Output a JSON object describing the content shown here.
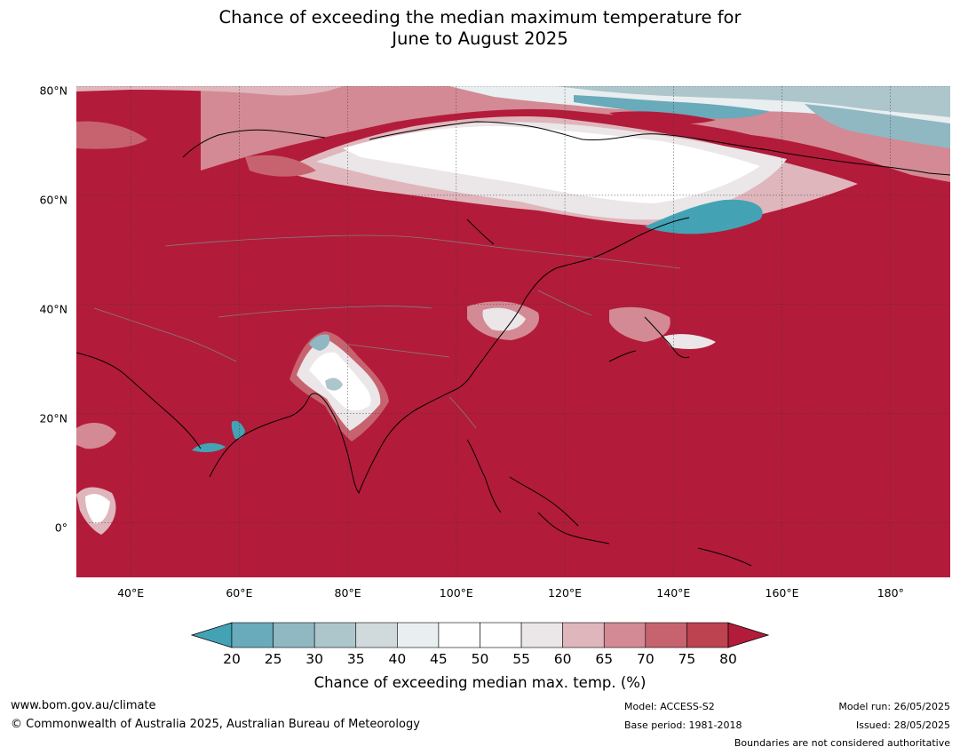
{
  "title": {
    "line1": "Chance of exceeding the median maximum temperature for",
    "line2": "June to August 2025"
  },
  "map": {
    "region": "Asia",
    "lat_labels": [
      "80°N",
      "60°N",
      "40°N",
      "20°N",
      "0°"
    ],
    "lat_values": [
      80,
      60,
      40,
      20,
      0
    ],
    "lon_labels": [
      "40°E",
      "60°E",
      "80°E",
      "100°E",
      "120°E",
      "140°E",
      "160°E",
      "180°"
    ],
    "lon_values": [
      40,
      60,
      80,
      100,
      120,
      140,
      160,
      180
    ],
    "lat_range": [
      -10,
      80
    ],
    "lon_range": [
      30,
      191
    ],
    "dominant_class": "80+",
    "colors": {
      "land_sea_fill": "#b31b3a",
      "coast": "#000000",
      "border": "#808080",
      "grid": "#3a3a3a"
    }
  },
  "colorbar": {
    "label": "Chance of exceeding median max. temp. (%)",
    "ticks": [
      "20",
      "25",
      "30",
      "35",
      "40",
      "45",
      "50",
      "55",
      "60",
      "65",
      "70",
      "75",
      "80"
    ],
    "colors": [
      "#43a3b4",
      "#69aabb",
      "#8fb8c3",
      "#adc6cb",
      "#d0d9db",
      "#e9eef0",
      "#ffffff",
      "#ffffff",
      "#ebe6e8",
      "#dfb6bc",
      "#d38a94",
      "#c7636f",
      "#bd4351",
      "#b31b3a"
    ]
  },
  "footer": {
    "url": "www.bom.gov.au/climate",
    "copyright": "© Commonwealth of Australia 2025, Australian Bureau of Meteorology",
    "model": "Model: ACCESS-S2",
    "base_period": "Base period: 1981-2018",
    "model_run": "Model run: 26/05/2025",
    "issued": "Issued: 28/05/2025",
    "disclaimer": "Boundaries are not considered authoritative"
  }
}
